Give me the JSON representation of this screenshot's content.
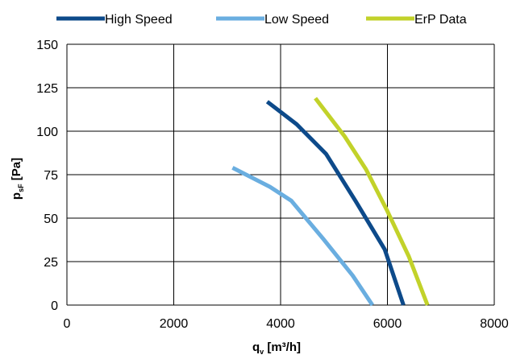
{
  "chart_data": {
    "type": "line",
    "xlim": [
      0,
      8000
    ],
    "ylim": [
      0,
      150
    ],
    "x_ticks": [
      0,
      2000,
      4000,
      6000,
      8000
    ],
    "y_ticks": [
      0,
      25,
      50,
      75,
      100,
      125,
      150
    ],
    "x_tick_labels": [
      "0",
      "2000",
      "4000",
      "6000",
      "8000"
    ],
    "y_tick_labels": [
      "0",
      "25",
      "50",
      "75",
      "100",
      "125",
      "150"
    ],
    "xlabel": {
      "main": "q",
      "sub": "v",
      "rest": " [m³/h]"
    },
    "ylabel": {
      "main": "p",
      "sub": "sF",
      "rest": " [Pa]"
    },
    "grid": true,
    "legend_position": "top",
    "series": [
      {
        "name": "High Speed",
        "color": "#0d4a8a",
        "points": [
          [
            3750,
            117
          ],
          [
            4300,
            104
          ],
          [
            4850,
            87
          ],
          [
            5400,
            60
          ],
          [
            5950,
            32
          ],
          [
            6300,
            0
          ]
        ]
      },
      {
        "name": "Low Speed",
        "color": "#6aaee0",
        "points": [
          [
            3100,
            79
          ],
          [
            3800,
            68
          ],
          [
            4200,
            60
          ],
          [
            4800,
            38
          ],
          [
            5350,
            17
          ],
          [
            5720,
            0
          ]
        ]
      },
      {
        "name": "ErP Data",
        "color": "#c2d22a",
        "points": [
          [
            4650,
            119
          ],
          [
            5200,
            97
          ],
          [
            5600,
            78
          ],
          [
            6000,
            54
          ],
          [
            6400,
            28
          ],
          [
            6750,
            0
          ]
        ]
      }
    ]
  }
}
